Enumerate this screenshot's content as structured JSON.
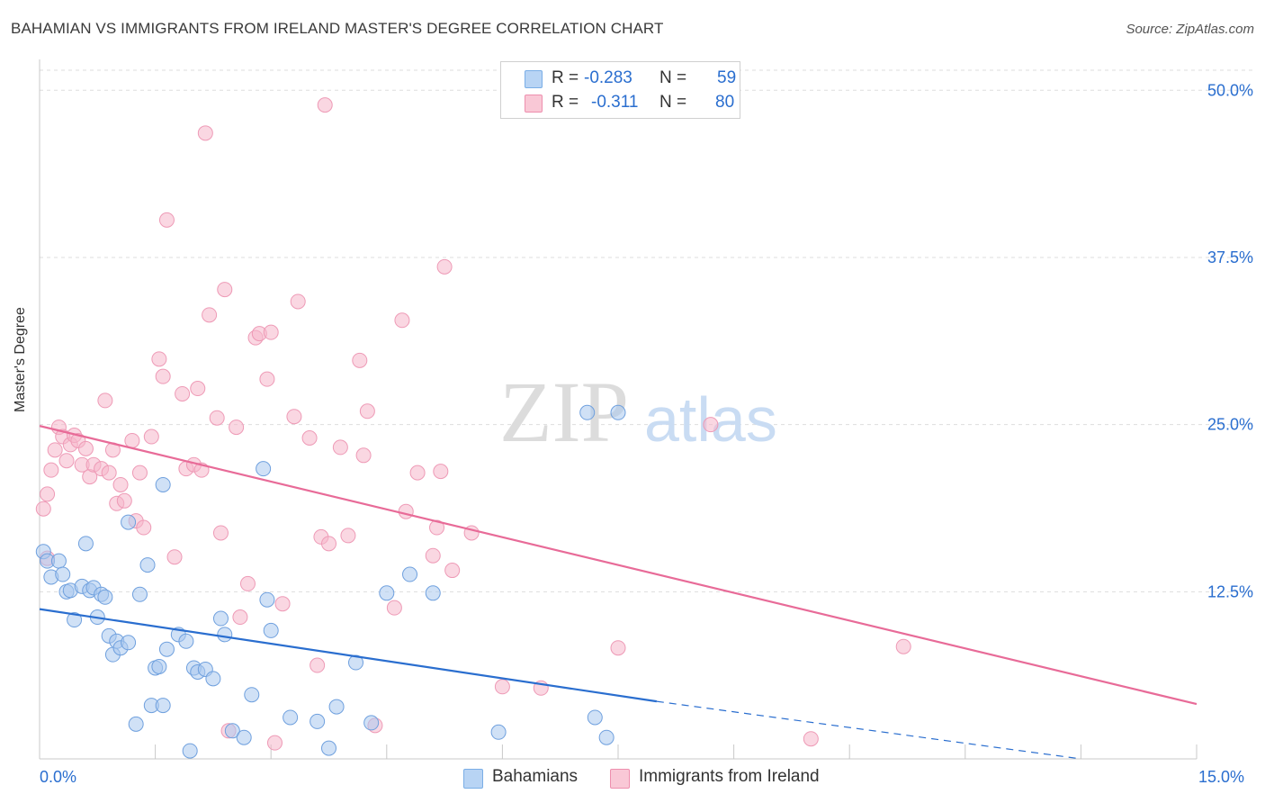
{
  "title": "BAHAMIAN VS IMMIGRANTS FROM IRELAND MASTER'S DEGREE CORRELATION CHART",
  "source": "Source: ZipAtlas.com",
  "watermark": {
    "zip": "ZIP",
    "atlas": "atlas"
  },
  "legend": {
    "rows": [
      {
        "r_label": "R =",
        "r_value": "-0.283",
        "n_label": "N =",
        "n_value": "59",
        "color": "#b8d4f4",
        "border": "#7aaee6"
      },
      {
        "r_label": "R =",
        "r_value": "-0.311",
        "n_label": "N =",
        "n_value": "80",
        "color": "#f9c8d6",
        "border": "#ee8fae"
      }
    ]
  },
  "bottom_legend": {
    "series1": "Bahamians",
    "series2": "Immigrants from Ireland"
  },
  "colors": {
    "blue_point": "#a9c9ef",
    "blue_line": "#2a6ecf",
    "pink_point": "#f5b7ca",
    "pink_line": "#e86b98",
    "axis_text": "#2a6ecf"
  },
  "chart_data": {
    "type": "scatter",
    "title": "BAHAMIAN VS IMMIGRANTS FROM IRELAND MASTER'S DEGREE CORRELATION CHART",
    "xlabel": "",
    "ylabel": "Master's Degree",
    "xlim": [
      0,
      15
    ],
    "ylim": [
      0,
      51.5
    ],
    "x_tick_labels": [
      "0.0%",
      "15.0%"
    ],
    "y_ticks": [
      12.5,
      25.0,
      37.5,
      50.0
    ],
    "y_tick_labels": [
      "12.5%",
      "25.0%",
      "37.5%",
      "50.0%"
    ],
    "grid": true,
    "series": [
      {
        "name": "Bahamians",
        "r": -0.283,
        "n": 59,
        "trend": {
          "x0": 0,
          "y0": 11.2,
          "x1": 8.0,
          "y1": 4.3,
          "dash_to_x": 13.5,
          "dash_to_y": 0
        },
        "points": [
          [
            0.05,
            15.5
          ],
          [
            0.1,
            14.8
          ],
          [
            0.15,
            13.6
          ],
          [
            0.25,
            14.8
          ],
          [
            0.3,
            13.8
          ],
          [
            0.35,
            12.5
          ],
          [
            0.4,
            12.6
          ],
          [
            0.45,
            10.4
          ],
          [
            0.55,
            12.9
          ],
          [
            0.6,
            16.1
          ],
          [
            0.65,
            12.6
          ],
          [
            0.7,
            12.8
          ],
          [
            0.75,
            10.6
          ],
          [
            0.8,
            12.3
          ],
          [
            0.85,
            12.1
          ],
          [
            0.9,
            9.2
          ],
          [
            0.95,
            7.8
          ],
          [
            1.0,
            8.8
          ],
          [
            1.05,
            8.3
          ],
          [
            1.15,
            8.7
          ],
          [
            1.15,
            17.7
          ],
          [
            1.25,
            2.6
          ],
          [
            1.3,
            12.3
          ],
          [
            1.4,
            14.5
          ],
          [
            1.45,
            4.0
          ],
          [
            1.5,
            6.8
          ],
          [
            1.55,
            6.9
          ],
          [
            1.6,
            4.0
          ],
          [
            1.65,
            8.2
          ],
          [
            1.6,
            20.5
          ],
          [
            1.8,
            9.3
          ],
          [
            1.9,
            8.8
          ],
          [
            1.95,
            0.6
          ],
          [
            2.0,
            6.8
          ],
          [
            2.05,
            6.5
          ],
          [
            2.15,
            6.7
          ],
          [
            2.25,
            6.0
          ],
          [
            2.35,
            10.5
          ],
          [
            2.4,
            9.3
          ],
          [
            2.5,
            2.1
          ],
          [
            2.65,
            1.6
          ],
          [
            2.75,
            4.8
          ],
          [
            2.9,
            21.7
          ],
          [
            2.95,
            11.9
          ],
          [
            3.0,
            9.6
          ],
          [
            3.25,
            3.1
          ],
          [
            3.6,
            2.8
          ],
          [
            3.75,
            0.8
          ],
          [
            3.85,
            3.9
          ],
          [
            4.1,
            7.2
          ],
          [
            4.3,
            2.7
          ],
          [
            4.5,
            12.4
          ],
          [
            4.8,
            13.8
          ],
          [
            5.1,
            12.4
          ],
          [
            5.95,
            2.0
          ],
          [
            7.1,
            25.9
          ],
          [
            7.2,
            3.1
          ],
          [
            7.35,
            1.6
          ],
          [
            7.5,
            25.9
          ]
        ]
      },
      {
        "name": "Immigrants from Ireland",
        "r": -0.311,
        "n": 80,
        "trend": {
          "x0": 0,
          "y0": 24.9,
          "x1": 15.0,
          "y1": 4.1
        },
        "points": [
          [
            0.05,
            18.7
          ],
          [
            0.1,
            19.8
          ],
          [
            0.1,
            15.0
          ],
          [
            0.15,
            21.6
          ],
          [
            0.2,
            23.1
          ],
          [
            0.25,
            24.8
          ],
          [
            0.3,
            24.1
          ],
          [
            0.35,
            22.3
          ],
          [
            0.4,
            23.5
          ],
          [
            0.45,
            24.2
          ],
          [
            0.5,
            23.8
          ],
          [
            0.55,
            22.0
          ],
          [
            0.6,
            23.2
          ],
          [
            0.65,
            21.1
          ],
          [
            0.7,
            22.0
          ],
          [
            0.8,
            21.7
          ],
          [
            0.85,
            26.8
          ],
          [
            0.9,
            21.4
          ],
          [
            0.95,
            23.1
          ],
          [
            1.0,
            19.1
          ],
          [
            1.05,
            20.5
          ],
          [
            1.1,
            19.3
          ],
          [
            1.2,
            23.8
          ],
          [
            1.25,
            17.8
          ],
          [
            1.3,
            21.4
          ],
          [
            1.35,
            17.3
          ],
          [
            1.45,
            24.1
          ],
          [
            1.55,
            29.9
          ],
          [
            1.6,
            28.6
          ],
          [
            1.65,
            40.3
          ],
          [
            1.75,
            15.1
          ],
          [
            1.85,
            27.3
          ],
          [
            1.9,
            21.7
          ],
          [
            2.0,
            22.0
          ],
          [
            2.05,
            27.7
          ],
          [
            2.1,
            21.6
          ],
          [
            2.15,
            46.8
          ],
          [
            2.2,
            33.2
          ],
          [
            2.3,
            25.5
          ],
          [
            2.35,
            16.9
          ],
          [
            2.4,
            35.1
          ],
          [
            2.45,
            2.1
          ],
          [
            2.55,
            24.8
          ],
          [
            2.6,
            10.6
          ],
          [
            2.7,
            13.1
          ],
          [
            2.8,
            31.5
          ],
          [
            2.85,
            31.8
          ],
          [
            2.95,
            28.4
          ],
          [
            3.0,
            31.9
          ],
          [
            3.05,
            1.2
          ],
          [
            3.15,
            11.6
          ],
          [
            3.3,
            25.6
          ],
          [
            3.35,
            34.2
          ],
          [
            3.5,
            24.0
          ],
          [
            3.6,
            7.0
          ],
          [
            3.65,
            16.6
          ],
          [
            3.7,
            48.9
          ],
          [
            3.75,
            16.1
          ],
          [
            3.9,
            23.3
          ],
          [
            4.0,
            16.7
          ],
          [
            4.15,
            29.8
          ],
          [
            4.2,
            22.7
          ],
          [
            4.25,
            26.0
          ],
          [
            4.35,
            2.5
          ],
          [
            4.6,
            11.3
          ],
          [
            4.7,
            32.8
          ],
          [
            4.75,
            18.5
          ],
          [
            4.9,
            21.4
          ],
          [
            5.1,
            15.2
          ],
          [
            5.15,
            17.3
          ],
          [
            5.2,
            21.5
          ],
          [
            5.25,
            36.8
          ],
          [
            5.35,
            14.1
          ],
          [
            5.6,
            16.9
          ],
          [
            6.0,
            5.4
          ],
          [
            6.5,
            5.3
          ],
          [
            7.5,
            8.3
          ],
          [
            8.7,
            25.0
          ],
          [
            10.0,
            1.5
          ],
          [
            11.2,
            8.4
          ]
        ]
      }
    ]
  }
}
